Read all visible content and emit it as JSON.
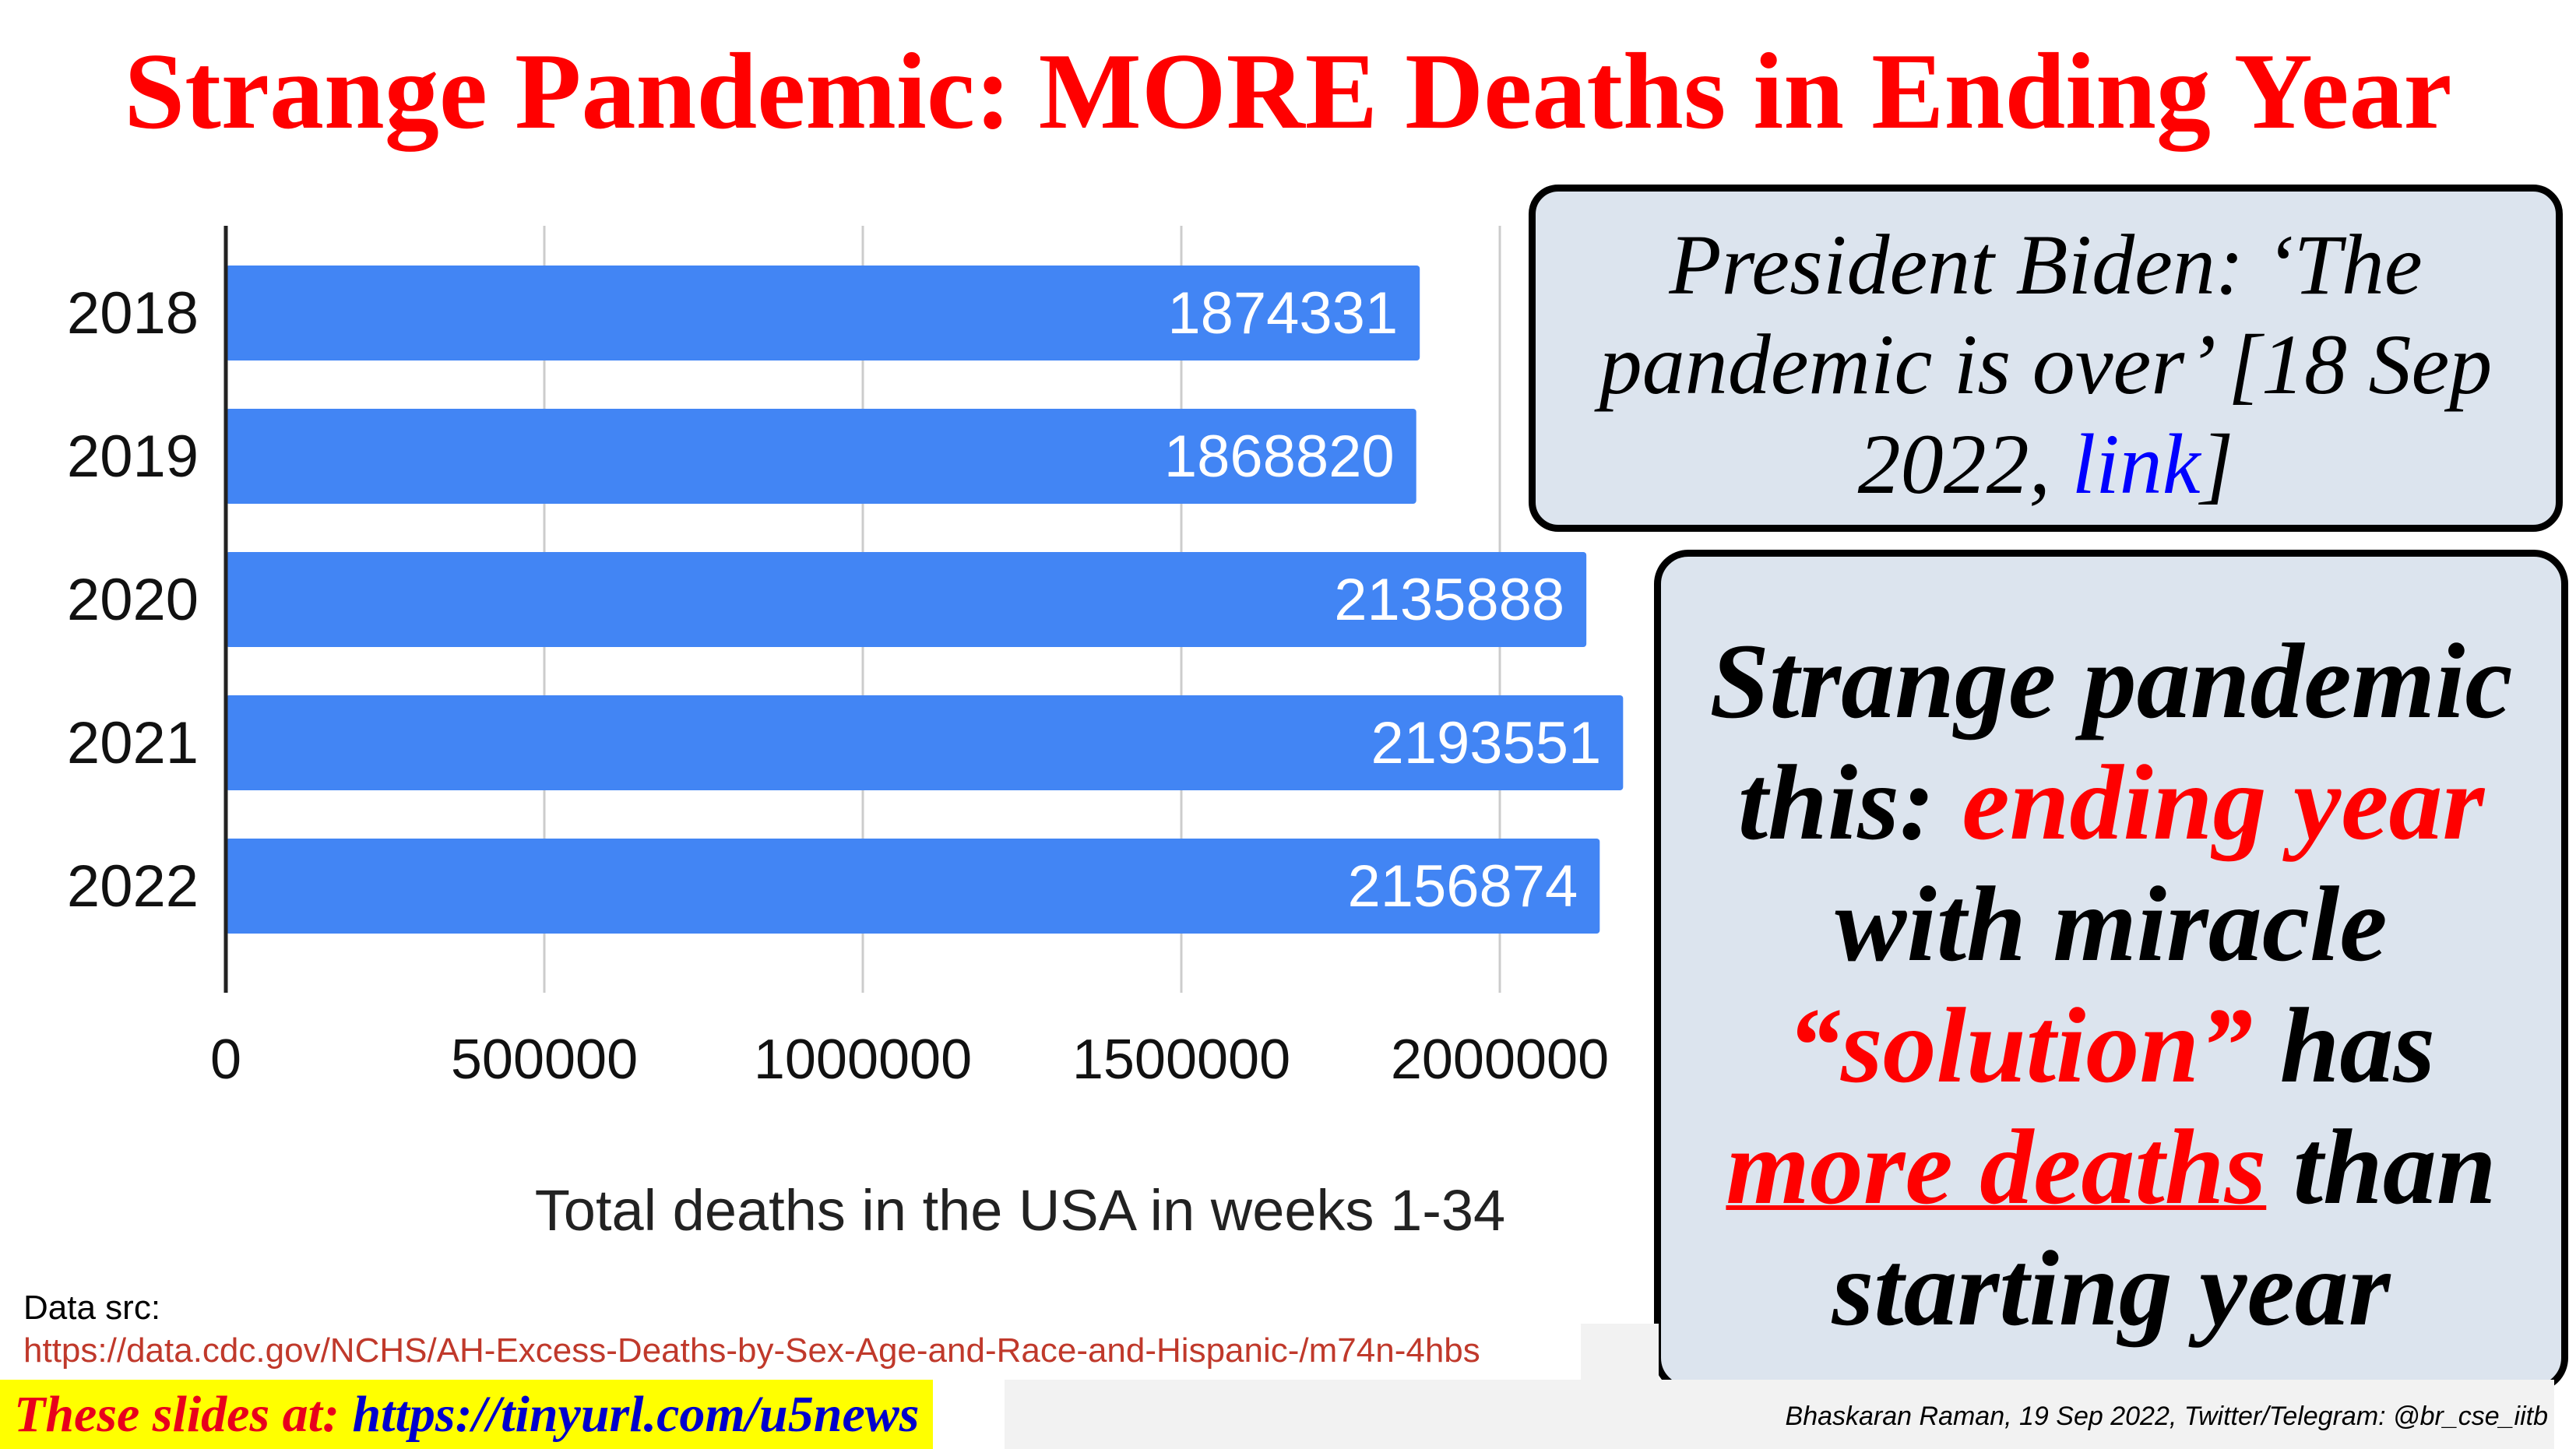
{
  "title": "Strange Pandemic: MORE Deaths in Ending Year",
  "quote": {
    "text": "President Biden: ‘The pandemic is over’ [18 Sep 2022, ",
    "link": "link",
    "close": "]"
  },
  "claim": {
    "p1": "Strange pandemic this: ",
    "p2": "ending year",
    "p3": " with miracle ",
    "p4": "“solution”",
    "p5": " has ",
    "p6": "more deaths",
    "p7": " than starting year"
  },
  "source": {
    "label": "Data src:",
    "url": "https://data.cdc.gov/NCHS/AH-Excess-Deaths-by-Sex-Age-and-Race-and-Hispanic-/m74n-4hbs"
  },
  "footer": {
    "slides_label": "These slides at: ",
    "slides_url": "https://tinyurl.com/u5news",
    "credit": "Bhaskaran Raman, 19 Sep 2022, Twitter/Telegram: @br_cse_iitb"
  },
  "colors": {
    "bar": "#4285f4",
    "title": "#ff0000",
    "box_bg": "#dce4ee",
    "link": "#0000ff"
  },
  "chart_data": {
    "type": "bar",
    "orientation": "horizontal",
    "categories": [
      "2018",
      "2019",
      "2020",
      "2021",
      "2022"
    ],
    "values": [
      1874331,
      1868820,
      2135888,
      2193551,
      2156874
    ],
    "data_labels": [
      "1874331",
      "1868820",
      "2135888",
      "2193551",
      "2156874"
    ],
    "xlabel": "Total deaths in the USA in weeks 1-34",
    "xticks": [
      "0",
      "500000",
      "1000000",
      "1500000",
      "2000000"
    ],
    "xlim": [
      0,
      2500000
    ],
    "grid": true,
    "legend": false
  }
}
